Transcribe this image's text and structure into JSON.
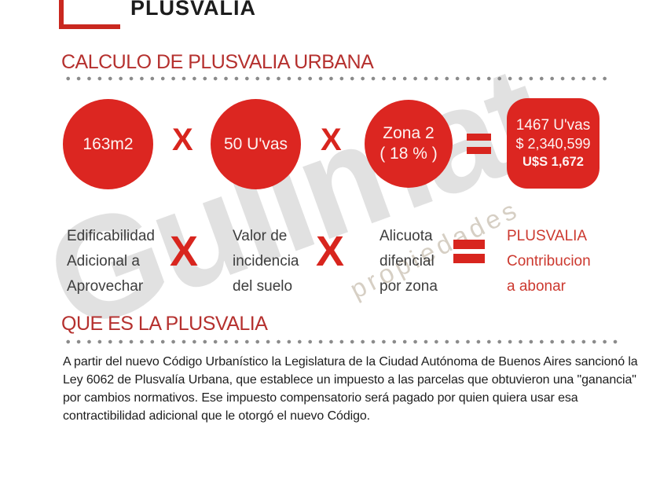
{
  "brand": {
    "name": "PLUSVALIA"
  },
  "colors": {
    "accent_red": "#dc2621",
    "title_red": "#b5302e",
    "legend_text": "#3d3d3d",
    "result_label_red": "#cc392f",
    "paragraph_text": "#1d1d1d",
    "dot_gray": "#8b8b8b"
  },
  "section_calculo": {
    "title": "CALCULO DE PLUSVALIA URBANA",
    "formula": {
      "operand1": "163m2",
      "operator1": "X",
      "operand2": "50 U'vas",
      "operator2": "X",
      "operand3_line1": "Zona 2",
      "operand3_line2": "( 18 % )",
      "equals": "=",
      "result": {
        "line1": "1467 U'vas",
        "line2": "$ 2,340,599",
        "line3": "U$S 1,672"
      }
    },
    "legend": {
      "operator": "X",
      "equals": "=",
      "label1": [
        "Edificabilidad",
        "Adicional a",
        "Aprovechar"
      ],
      "label2": [
        "Valor de",
        "incidencia",
        "del suelo"
      ],
      "label3": [
        "Alicuota",
        "difencial",
        "por zona"
      ],
      "result_label": [
        "PLUSVALIA",
        "Contribucion",
        "a abonar"
      ]
    }
  },
  "section_que_es": {
    "title": "QUE ES LA PLUSVALIA",
    "paragraph_lines": [
      "A partir del nuevo Código Urbanístico la Legislatura de la Ciudad Autónoma de Buenos Aires sancionó la",
      "Ley 6062 de Plusvalía Urbana, que establece un impuesto a las parcelas que obtuvieron una \"ganancia\"",
      "por cambios normativos. Ese impuesto compensatorio será pagado por quien quiera usar esa",
      "contractibilidad adicional que le otorgó el nuevo Código."
    ]
  },
  "watermark": {
    "primary": "Gulimat",
    "secondary": "propiedades"
  }
}
